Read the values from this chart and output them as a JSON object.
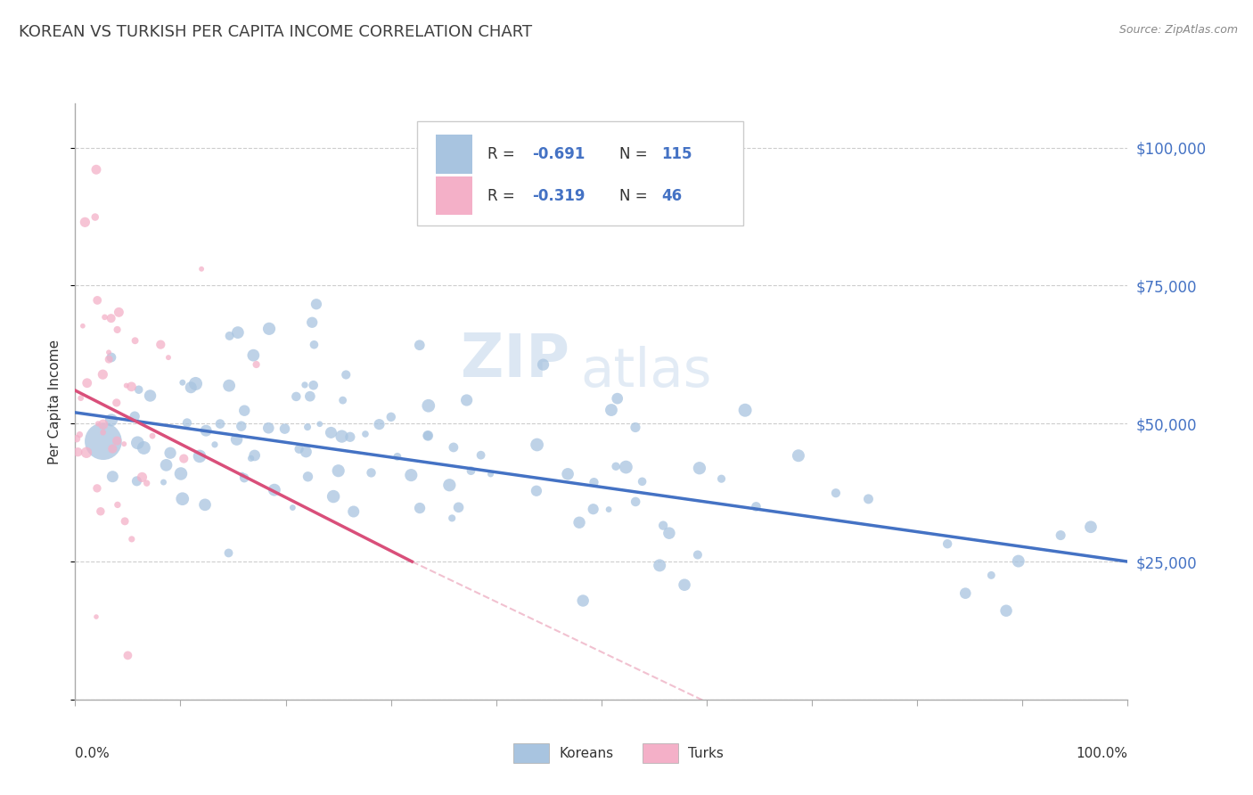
{
  "title": "KOREAN VS TURKISH PER CAPITA INCOME CORRELATION CHART",
  "source": "Source: ZipAtlas.com",
  "ylabel": "Per Capita Income",
  "watermark_zip": "ZIP",
  "watermark_atlas": "atlas",
  "legend_korean_R": "-0.691",
  "legend_korean_N": "115",
  "legend_turkish_R": "-0.319",
  "legend_turkish_N": "46",
  "ytick_vals": [
    0,
    25000,
    50000,
    75000,
    100000
  ],
  "ytick_labels": [
    "",
    "$25,000",
    "$50,000",
    "$75,000",
    "$100,000"
  ],
  "korean_color": "#a8c4e0",
  "korean_line_color": "#4472c4",
  "turkish_color": "#f4b0c8",
  "turkish_line_color": "#d94f7a",
  "background_color": "#ffffff",
  "grid_color": "#c8c8c8",
  "title_color": "#404040",
  "right_tick_color": "#4472c4",
  "blue_text_color": "#4472c4",
  "dark_text_color": "#333333",
  "source_color": "#888888",
  "xlim": [
    0,
    1
  ],
  "ylim": [
    0,
    108000
  ],
  "seed": 17
}
